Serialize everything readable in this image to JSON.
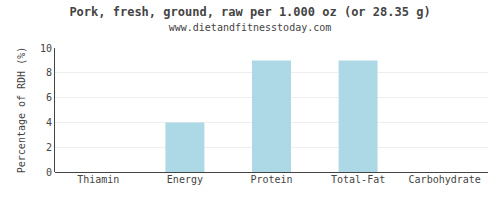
{
  "chart_data": {
    "type": "bar",
    "title": "Pork, fresh, ground, raw per 1.000 oz (or 28.35 g)",
    "subtitle": "www.dietandfitnesstoday.com",
    "categories": [
      "Thiamin",
      "Energy",
      "Protein",
      "Total-Fat",
      "Carbohydrate"
    ],
    "values": [
      0.0,
      4.0,
      9.0,
      9.0,
      0.0
    ],
    "color": "#add8e6",
    "ylabel": "Percentage of RDH (%)",
    "ylim": [
      0,
      10
    ],
    "yticks": [
      0,
      2,
      4,
      6,
      8,
      10
    ],
    "grid": true
  }
}
